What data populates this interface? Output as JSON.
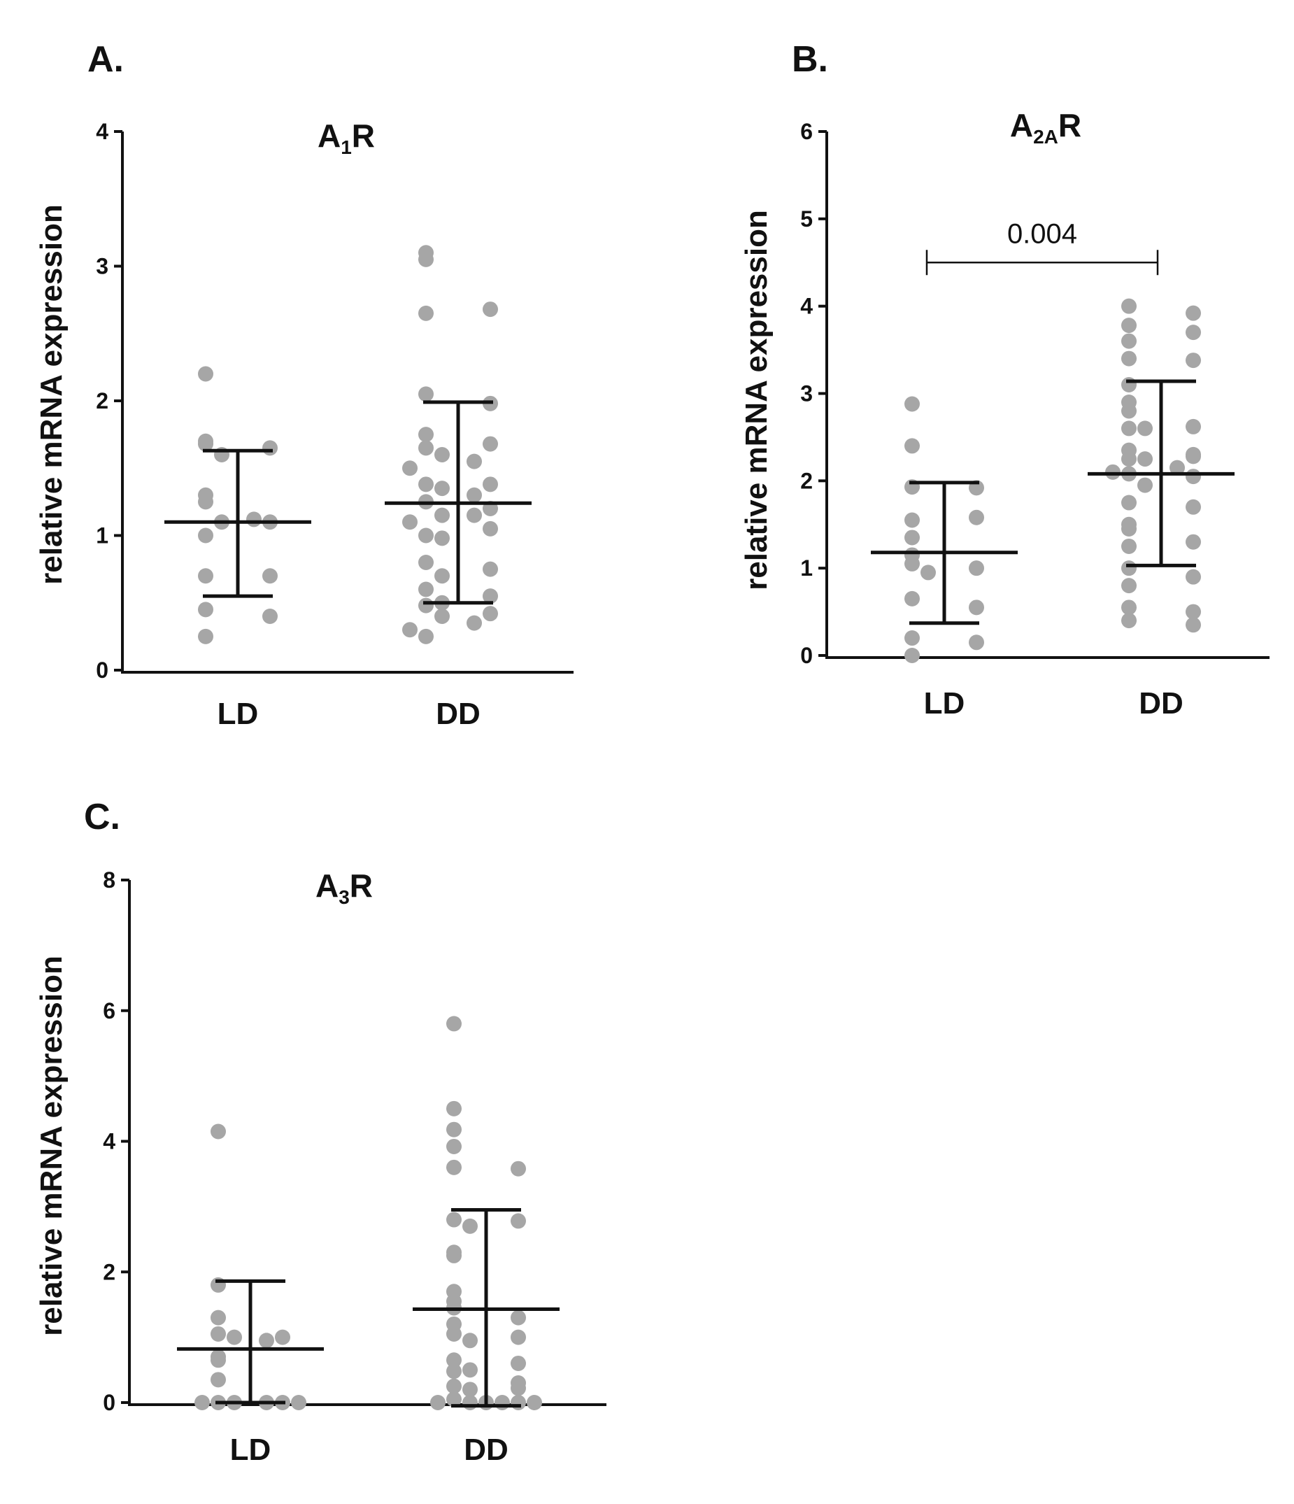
{
  "colors": {
    "points": "#a6a6a6",
    "lines": "#111111"
  },
  "chart_data": [
    {
      "type": "scatter",
      "panel": "A.",
      "title": "A1R",
      "title_main": "A",
      "title_sub": "1",
      "title_tail": "R",
      "ylabel": "relative mRNA expression",
      "xlabel": "",
      "ylim": [
        0,
        4
      ],
      "yticks": [
        "0",
        "1",
        "2",
        "3",
        "4"
      ],
      "categories": [
        "LD",
        "DD"
      ],
      "series": [
        {
          "category": "LD",
          "mean": 1.1,
          "sd_low": 0.55,
          "sd_high": 1.63,
          "values": [
            2.2,
            1.68,
            1.65,
            1.6,
            1.7,
            1.3,
            1.25,
            1.1,
            1.1,
            1.12,
            1.0,
            0.7,
            0.7,
            0.45,
            0.4,
            0.25
          ]
        },
        {
          "category": "DD",
          "mean": 1.24,
          "sd_low": 0.5,
          "sd_high": 1.99,
          "values": [
            3.1,
            3.05,
            2.65,
            2.68,
            2.05,
            1.98,
            1.75,
            1.65,
            1.68,
            1.6,
            1.55,
            1.5,
            1.38,
            1.38,
            1.35,
            1.3,
            1.25,
            1.2,
            1.15,
            1.15,
            1.1,
            1.0,
            1.05,
            0.98,
            0.8,
            0.75,
            0.7,
            0.6,
            0.55,
            0.5,
            0.48,
            0.42,
            0.4,
            0.35,
            0.3,
            0.25
          ]
        }
      ]
    },
    {
      "type": "scatter",
      "panel": "B.",
      "title": "A2AR",
      "title_main": "A",
      "title_sub": "2A",
      "title_tail": "R",
      "ylabel": "relative mRNA expression",
      "xlabel": "",
      "ylim": [
        0,
        6
      ],
      "yticks": [
        "0",
        "1",
        "2",
        "3",
        "4",
        "5",
        "6"
      ],
      "categories": [
        "LD",
        "DD"
      ],
      "significance": {
        "label": "0.004",
        "y": 4.5
      },
      "series": [
        {
          "category": "LD",
          "mean": 1.18,
          "sd_low": 0.37,
          "sd_high": 1.98,
          "values": [
            2.88,
            2.4,
            1.93,
            1.92,
            1.55,
            1.58,
            1.35,
            1.15,
            1.05,
            1.0,
            0.95,
            0.65,
            0.55,
            0.2,
            0.15,
            0.0
          ]
        },
        {
          "category": "DD",
          "mean": 2.08,
          "sd_low": 1.03,
          "sd_high": 3.14,
          "values": [
            4.0,
            3.92,
            3.78,
            3.7,
            3.6,
            3.4,
            3.38,
            3.1,
            2.9,
            2.8,
            2.6,
            2.62,
            2.6,
            2.35,
            2.3,
            2.25,
            2.28,
            2.25,
            2.15,
            2.1,
            2.08,
            2.05,
            1.95,
            1.75,
            1.7,
            1.5,
            1.45,
            1.3,
            1.25,
            1.0,
            0.9,
            0.8,
            0.55,
            0.5,
            0.4,
            0.35
          ]
        }
      ]
    },
    {
      "type": "scatter",
      "panel": "C.",
      "title": "A3R",
      "title_main": "A",
      "title_sub": "3",
      "title_tail": "R",
      "ylabel": "relative mRNA expression",
      "xlabel": "",
      "ylim": [
        0,
        8
      ],
      "yticks": [
        "0",
        "2",
        "4",
        "6",
        "8"
      ],
      "categories": [
        "LD",
        "DD"
      ],
      "series": [
        {
          "category": "LD",
          "mean": 0.82,
          "sd_low": 0.0,
          "sd_high": 1.86,
          "values": [
            4.15,
            1.8,
            1.3,
            1.05,
            1.0,
            1.0,
            0.95,
            0.7,
            0.65,
            0.35,
            0.0,
            0.0,
            0.0,
            0.0,
            0.0,
            0.0
          ]
        },
        {
          "category": "DD",
          "mean": 1.43,
          "sd_low": -0.05,
          "sd_high": 2.95,
          "values": [
            5.8,
            4.5,
            4.18,
            3.92,
            3.6,
            3.58,
            2.8,
            2.78,
            2.7,
            2.3,
            2.25,
            1.7,
            1.55,
            1.45,
            1.3,
            1.2,
            1.05,
            1.0,
            0.95,
            0.65,
            0.6,
            0.5,
            0.48,
            0.3,
            0.25,
            0.22,
            0.2,
            0.05,
            0.0,
            0.0,
            0.0,
            0.0,
            0.0,
            0.0
          ]
        }
      ]
    }
  ]
}
